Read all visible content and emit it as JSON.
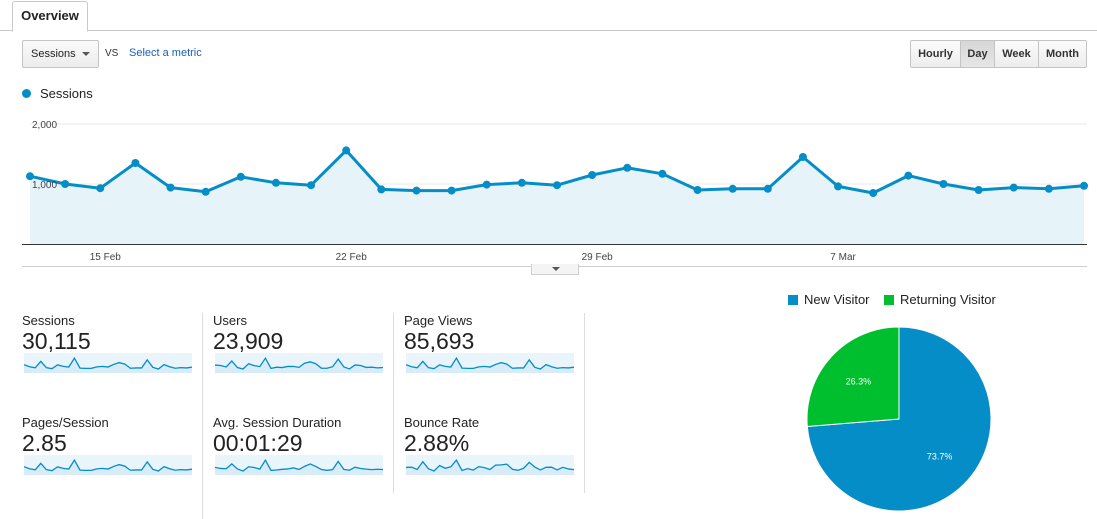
{
  "tabs": [
    {
      "label": "Overview"
    }
  ],
  "controls": {
    "metric": "Sessions",
    "vs": "VS",
    "select_metric": "Select a metric",
    "ranges": [
      "Hourly",
      "Day",
      "Week",
      "Month"
    ],
    "active_range": "Day"
  },
  "colors": {
    "sessions": "#058dc7",
    "new_visitor": "#058dc7",
    "returning_visitor": "#00bf2f"
  },
  "scorecards": [
    {
      "label": "Sessions",
      "value": "30,115"
    },
    {
      "label": "Users",
      "value": "23,909"
    },
    {
      "label": "Page Views",
      "value": "85,693"
    },
    {
      "label": "Pages/Session",
      "value": "2.85"
    },
    {
      "label": "Avg. Session Duration",
      "value": "00:01:29"
    },
    {
      "label": "Bounce Rate",
      "value": "2.88%"
    }
  ],
  "chart_data": [
    {
      "type": "area",
      "series": [
        {
          "name": "Sessions",
          "values": [
            1130,
            1000,
            930,
            1350,
            940,
            870,
            1120,
            1020,
            980,
            1560,
            910,
            890,
            890,
            990,
            1020,
            980,
            1150,
            1270,
            1170,
            900,
            920,
            920,
            1450,
            960,
            850,
            1140,
            1000,
            900,
            940,
            920,
            970
          ]
        }
      ],
      "x_tick_labels": [
        "15 Feb",
        "22 Feb",
        "29 Feb",
        "7 Mar"
      ],
      "y_tick_labels": [
        "1,000",
        "2,000"
      ],
      "ylim": [
        0,
        2000
      ],
      "grid": true
    },
    {
      "type": "pie",
      "legend_position": "top",
      "slices": [
        {
          "name": "New Visitor",
          "value": 73.7,
          "label": "73.7%"
        },
        {
          "name": "Returning Visitor",
          "value": 26.3,
          "label": "26.3%"
        }
      ]
    }
  ]
}
